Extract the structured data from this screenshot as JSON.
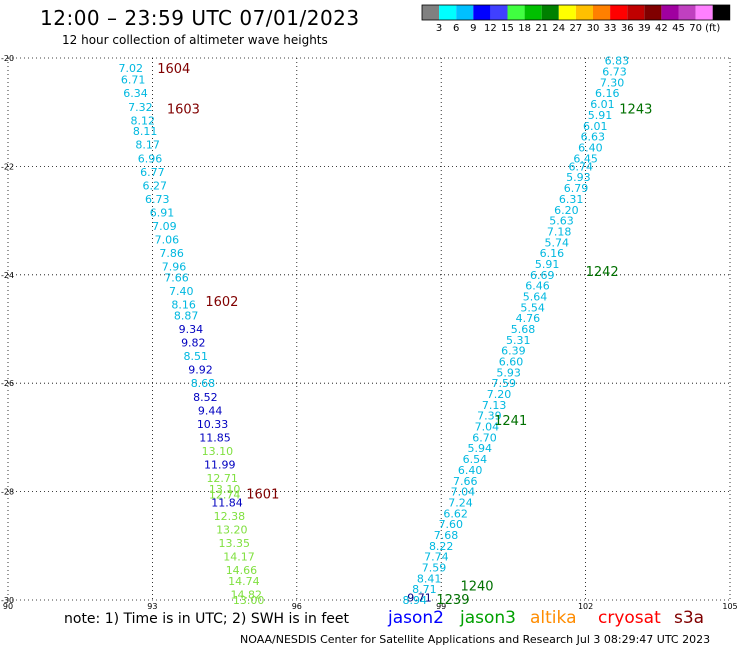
{
  "header": {
    "title": "12:00 – 23:59 UTC 07/01/2023",
    "subtitle": "12 hour collection of altimeter wave heights"
  },
  "colorbar": {
    "colors": [
      "#808080",
      "#00ffff",
      "#00c0ff",
      "#0000ff",
      "#4040ff",
      "#40ff40",
      "#00c000",
      "#008000",
      "#ffff00",
      "#ffc000",
      "#ff8000",
      "#ff0000",
      "#c00000",
      "#800000",
      "#a000a0",
      "#c040c0",
      "#ff80ff",
      "#000000"
    ],
    "labels": [
      "3",
      "6",
      "9",
      "12",
      "15",
      "18",
      "21",
      "24",
      "27",
      "30",
      "33",
      "36",
      "39",
      "42",
      "45",
      "70",
      "(ft)"
    ]
  },
  "footer": {
    "note": "note:  1) Time is in UTC;  2) SWH is in feet",
    "credit": "NOAA/NESDIS Center for Satellite Applications and Research    Jul  3 08:29:47 UTC 2023",
    "satellites": [
      {
        "name": "jason2",
        "color": "#0000ff"
      },
      {
        "name": "jason3",
        "color": "#00a000"
      },
      {
        "name": "altika",
        "color": "#ff8c00"
      },
      {
        "name": "cryosat",
        "color": "#ff0000"
      },
      {
        "name": "s3a",
        "color": "#800000"
      }
    ]
  },
  "chart_data": {
    "type": "scatter",
    "xlim": [
      90,
      105
    ],
    "ylim": [
      -30,
      -20
    ],
    "xticks": [
      "90",
      "93",
      "96",
      "99",
      "102",
      "105"
    ],
    "yticks": [
      "-20",
      "-22",
      "-24",
      "-26",
      "-28",
      "-30"
    ],
    "grid": true,
    "tracks": [
      {
        "name": "west",
        "color": "#00b8e0",
        "points": [
          {
            "x": 92.55,
            "y": -20.18,
            "v": "7.02"
          },
          {
            "x": 92.6,
            "y": -20.4,
            "v": "6.71"
          },
          {
            "x": 92.65,
            "y": -20.65,
            "v": "6.34"
          },
          {
            "x": 92.75,
            "y": -20.9,
            "v": "7.32"
          },
          {
            "x": 92.8,
            "y": -21.15,
            "v": "8.12"
          },
          {
            "x": 92.85,
            "y": -21.35,
            "v": "8.11"
          },
          {
            "x": 92.9,
            "y": -21.6,
            "v": "8.17"
          },
          {
            "x": 92.95,
            "y": -21.85,
            "v": "6.96"
          },
          {
            "x": 93.0,
            "y": -22.1,
            "v": "6.77"
          },
          {
            "x": 93.05,
            "y": -22.35,
            "v": "6.27"
          },
          {
            "x": 93.1,
            "y": -22.6,
            "v": "6.73"
          },
          {
            "x": 93.2,
            "y": -22.85,
            "v": "6.91"
          },
          {
            "x": 93.25,
            "y": -23.1,
            "v": "7.09"
          },
          {
            "x": 93.3,
            "y": -23.35,
            "v": "7.06"
          },
          {
            "x": 93.4,
            "y": -23.6,
            "v": "7.86"
          },
          {
            "x": 93.45,
            "y": -23.85,
            "v": "7.96"
          },
          {
            "x": 93.5,
            "y": -24.05,
            "v": "7.66"
          },
          {
            "x": 93.6,
            "y": -24.3,
            "v": "7.40"
          },
          {
            "x": 93.65,
            "y": -24.55,
            "v": "8.16"
          },
          {
            "x": 93.7,
            "y": -24.75,
            "v": "8.87"
          },
          {
            "x": 93.8,
            "y": -25.0,
            "v": "9.34",
            "c": "#0000c0"
          },
          {
            "x": 93.85,
            "y": -25.25,
            "v": "9.82",
            "c": "#0000c0"
          },
          {
            "x": 93.9,
            "y": -25.5,
            "v": "8.51"
          },
          {
            "x": 94.0,
            "y": -25.75,
            "v": "9.92",
            "c": "#0000c0"
          },
          {
            "x": 94.05,
            "y": -26.0,
            "v": "8.68"
          },
          {
            "x": 94.1,
            "y": -26.25,
            "v": "8.52",
            "c": "#0000c0"
          },
          {
            "x": 94.2,
            "y": -26.5,
            "v": "9.44",
            "c": "#0000c0"
          },
          {
            "x": 94.25,
            "y": -26.75,
            "v": "10.33",
            "c": "#0000c0"
          },
          {
            "x": 94.3,
            "y": -27.0,
            "v": "11.85",
            "c": "#0000c0"
          },
          {
            "x": 94.35,
            "y": -27.25,
            "v": "13.10",
            "c": "#80e040"
          },
          {
            "x": 94.4,
            "y": -27.5,
            "v": "11.99",
            "c": "#0000c0"
          },
          {
            "x": 94.45,
            "y": -27.75,
            "v": "12.71",
            "c": "#80e040"
          },
          {
            "x": 94.5,
            "y": -27.95,
            "v": "13.10",
            "c": "#80e040"
          },
          {
            "x": 94.5,
            "y": -28.05,
            "v": "12.74",
            "c": "#80e040"
          },
          {
            "x": 94.55,
            "y": -28.2,
            "v": "11.84",
            "c": "#0000c0"
          },
          {
            "x": 94.6,
            "y": -28.45,
            "v": "12.38",
            "c": "#80e040"
          },
          {
            "x": 94.65,
            "y": -28.7,
            "v": "13.20",
            "c": "#80e040"
          },
          {
            "x": 94.7,
            "y": -28.95,
            "v": "13.35",
            "c": "#80e040"
          },
          {
            "x": 94.8,
            "y": -29.2,
            "v": "14.17",
            "c": "#80e040"
          },
          {
            "x": 94.85,
            "y": -29.45,
            "v": "14.66",
            "c": "#80e040"
          },
          {
            "x": 94.9,
            "y": -29.65,
            "v": "14.74",
            "c": "#80e040"
          },
          {
            "x": 94.95,
            "y": -29.9,
            "v": "14.82",
            "c": "#80e040"
          },
          {
            "x": 95.0,
            "y": -30.0,
            "v": "13.00",
            "c": "#80e040"
          }
        ],
        "markers": [
          {
            "x": 93.1,
            "y": -20.2,
            "label": "1604",
            "color": "#800000"
          },
          {
            "x": 93.3,
            "y": -20.95,
            "label": "1603",
            "color": "#800000"
          },
          {
            "x": 94.1,
            "y": -24.5,
            "label": "1602",
            "color": "#800000"
          },
          {
            "x": 94.95,
            "y": -28.05,
            "label": "1601",
            "color": "#800000"
          }
        ]
      },
      {
        "name": "east",
        "color": "#00b8e0",
        "points": [
          {
            "x": 102.65,
            "y": -20.05,
            "v": "6.83"
          },
          {
            "x": 102.6,
            "y": -20.25,
            "v": "6.73"
          },
          {
            "x": 102.55,
            "y": -20.45,
            "v": "7.30"
          },
          {
            "x": 102.45,
            "y": -20.65,
            "v": "6.16"
          },
          {
            "x": 102.35,
            "y": -20.85,
            "v": "6.01"
          },
          {
            "x": 102.3,
            "y": -21.05,
            "v": "5.91"
          },
          {
            "x": 102.2,
            "y": -21.25,
            "v": "6.01"
          },
          {
            "x": 102.15,
            "y": -21.45,
            "v": "6.63"
          },
          {
            "x": 102.1,
            "y": -21.65,
            "v": "6.40"
          },
          {
            "x": 102.0,
            "y": -21.85,
            "v": "6.45"
          },
          {
            "x": 101.9,
            "y": -22.0,
            "v": "6.74"
          },
          {
            "x": 101.85,
            "y": -22.2,
            "v": "5.93"
          },
          {
            "x": 101.8,
            "y": -22.4,
            "v": "6.79"
          },
          {
            "x": 101.7,
            "y": -22.6,
            "v": "6.31"
          },
          {
            "x": 101.6,
            "y": -22.8,
            "v": "6.20"
          },
          {
            "x": 101.5,
            "y": -23.0,
            "v": "5.63"
          },
          {
            "x": 101.45,
            "y": -23.2,
            "v": "7.18"
          },
          {
            "x": 101.4,
            "y": -23.4,
            "v": "5.74"
          },
          {
            "x": 101.3,
            "y": -23.6,
            "v": "6.16"
          },
          {
            "x": 101.2,
            "y": -23.8,
            "v": "5.91"
          },
          {
            "x": 101.1,
            "y": -24.0,
            "v": "6.69"
          },
          {
            "x": 101.0,
            "y": -24.2,
            "v": "6.46"
          },
          {
            "x": 100.95,
            "y": -24.4,
            "v": "5.64"
          },
          {
            "x": 100.9,
            "y": -24.6,
            "v": "5.54"
          },
          {
            "x": 100.8,
            "y": -24.8,
            "v": "4.76"
          },
          {
            "x": 100.7,
            "y": -25.0,
            "v": "5.68"
          },
          {
            "x": 100.6,
            "y": -25.2,
            "v": "5.31"
          },
          {
            "x": 100.5,
            "y": -25.4,
            "v": "6.39"
          },
          {
            "x": 100.45,
            "y": -25.6,
            "v": "6.60"
          },
          {
            "x": 100.4,
            "y": -25.8,
            "v": "5.93"
          },
          {
            "x": 100.3,
            "y": -26.0,
            "v": "7.59"
          },
          {
            "x": 100.2,
            "y": -26.2,
            "v": "7.20"
          },
          {
            "x": 100.1,
            "y": -26.4,
            "v": "7.13"
          },
          {
            "x": 100.0,
            "y": -26.6,
            "v": "7.39"
          },
          {
            "x": 99.95,
            "y": -26.8,
            "v": "7.04"
          },
          {
            "x": 99.9,
            "y": -27.0,
            "v": "6.70"
          },
          {
            "x": 99.8,
            "y": -27.2,
            "v": "5.94"
          },
          {
            "x": 99.7,
            "y": -27.4,
            "v": "6.54"
          },
          {
            "x": 99.6,
            "y": -27.6,
            "v": "6.40"
          },
          {
            "x": 99.5,
            "y": -27.8,
            "v": "7.66"
          },
          {
            "x": 99.45,
            "y": -28.0,
            "v": "7.04"
          },
          {
            "x": 99.4,
            "y": -28.2,
            "v": "7.24"
          },
          {
            "x": 99.3,
            "y": -28.4,
            "v": "6.62"
          },
          {
            "x": 99.2,
            "y": -28.6,
            "v": "7.60"
          },
          {
            "x": 99.1,
            "y": -28.8,
            "v": "7.68"
          },
          {
            "x": 99.0,
            "y": -29.0,
            "v": "8.22"
          },
          {
            "x": 98.9,
            "y": -29.2,
            "v": "7.74"
          },
          {
            "x": 98.85,
            "y": -29.4,
            "v": "7.59"
          },
          {
            "x": 98.75,
            "y": -29.6,
            "v": "8.41"
          },
          {
            "x": 98.65,
            "y": -29.8,
            "v": "8.71"
          },
          {
            "x": 98.55,
            "y": -29.95,
            "v": "9.71",
            "c": "#000080"
          },
          {
            "x": 98.45,
            "y": -30.0,
            "v": "8.94"
          }
        ],
        "markers": [
          {
            "x": 102.7,
            "y": -20.95,
            "label": "1243",
            "color": "#007000"
          },
          {
            "x": 102.0,
            "y": -23.95,
            "label": "1242",
            "color": "#007000"
          },
          {
            "x": 100.1,
            "y": -26.7,
            "label": "1241",
            "color": "#007000"
          },
          {
            "x": 99.4,
            "y": -29.75,
            "label": "1240",
            "color": "#007000"
          },
          {
            "x": 98.9,
            "y": -30.0,
            "label": "1239",
            "color": "#007000"
          }
        ]
      }
    ]
  }
}
